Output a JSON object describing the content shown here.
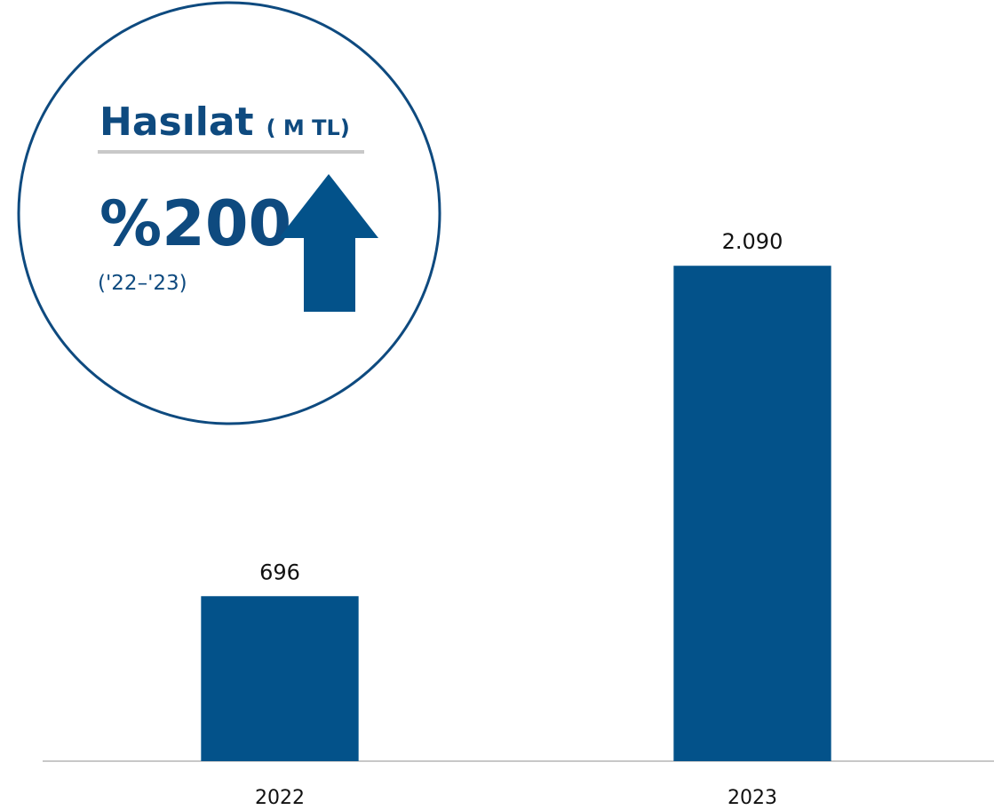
{
  "chart_data": {
    "type": "bar",
    "title": "Hasılat",
    "subtitle": "( M TL)",
    "annotations": [
      "%200",
      "('22–'23)"
    ],
    "categories": [
      "2022",
      "2023"
    ],
    "values": [
      696,
      2090
    ],
    "value_labels": [
      "696",
      "2.090"
    ],
    "color": "#03528a",
    "ylim": [
      0,
      3200
    ]
  }
}
